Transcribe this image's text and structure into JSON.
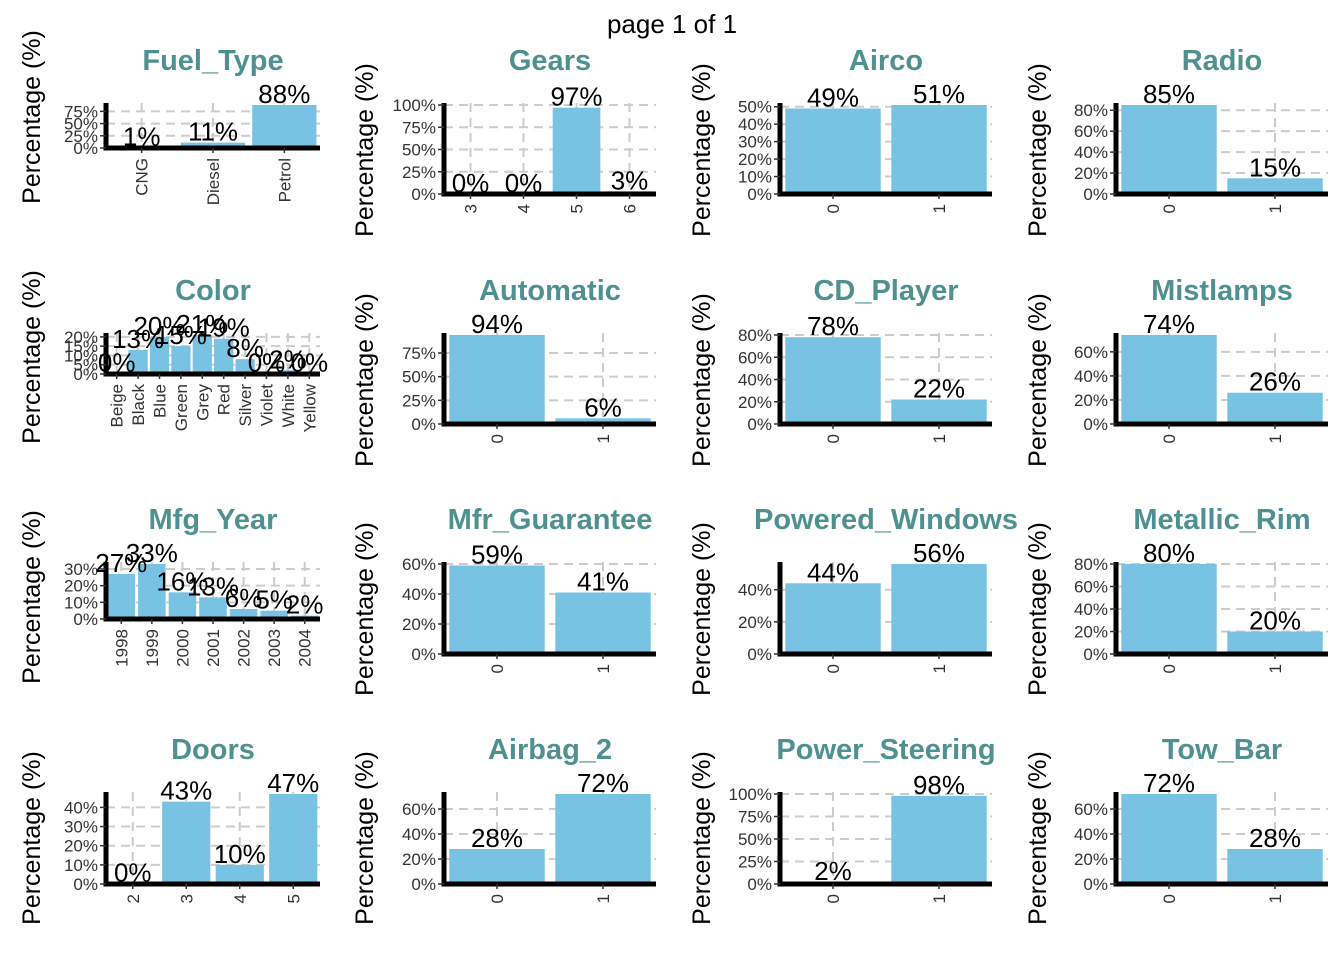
{
  "page_label": "page 1 of 1",
  "colors": {
    "bar": "#78c2e4",
    "title": "#4f9191",
    "grid": "#cccccc"
  },
  "chart_data": [
    {
      "type": "bar",
      "title": "Fuel_Type",
      "ylabel": "Percentage (%)",
      "categories": [
        "CNG",
        "Diesel",
        "Petrol"
      ],
      "values": [
        1,
        11,
        88
      ],
      "labels": [
        "1%",
        "11%",
        "88%"
      ],
      "yticks": [
        "0%",
        "25%",
        "50%",
        "75%"
      ],
      "ytick_values": [
        0,
        25,
        50,
        75
      ],
      "ylim": [
        0,
        88
      ]
    },
    {
      "type": "bar",
      "title": "Gears",
      "ylabel": "Percentage (%)",
      "categories": [
        "3",
        "4",
        "5",
        "6"
      ],
      "values": [
        0,
        0,
        97,
        3
      ],
      "labels": [
        "0%",
        "0%",
        "97%",
        "3%"
      ],
      "yticks": [
        "0%",
        "25%",
        "50%",
        "75%",
        "100%"
      ],
      "ytick_values": [
        0,
        25,
        50,
        75,
        100
      ],
      "ylim": [
        0,
        100
      ]
    },
    {
      "type": "bar",
      "title": "Airco",
      "ylabel": "Percentage (%)",
      "categories": [
        "0",
        "1"
      ],
      "values": [
        49,
        51
      ],
      "labels": [
        "49%",
        "51%"
      ],
      "yticks": [
        "0%",
        "10%",
        "20%",
        "30%",
        "40%",
        "50%"
      ],
      "ytick_values": [
        0,
        10,
        20,
        30,
        40,
        50
      ],
      "ylim": [
        0,
        51
      ]
    },
    {
      "type": "bar",
      "title": "Radio",
      "ylabel": "Percentage (%)",
      "categories": [
        "0",
        "1"
      ],
      "values": [
        85,
        15
      ],
      "labels": [
        "85%",
        "15%"
      ],
      "yticks": [
        "0%",
        "20%",
        "40%",
        "60%",
        "80%"
      ],
      "ytick_values": [
        0,
        20,
        40,
        60,
        80
      ],
      "ylim": [
        0,
        85
      ]
    },
    {
      "type": "bar",
      "title": "Color",
      "ylabel": "Percentage (%)",
      "categories": [
        "Beige",
        "Black",
        "Blue",
        "Green",
        "Grey",
        "Red",
        "Silver",
        "Violet",
        "White",
        "Yellow"
      ],
      "values": [
        0.2,
        13,
        20,
        15,
        21,
        19,
        8,
        0.2,
        2,
        0.2
      ],
      "labels": [
        "0%",
        "13%",
        "20%",
        "15%",
        "21%",
        "19%",
        "8%",
        "0%",
        "2%",
        "0%"
      ],
      "yticks": [
        "0%",
        "5%",
        "10%",
        "15%",
        "20%"
      ],
      "ytick_values": [
        0,
        5,
        10,
        15,
        20
      ],
      "ylim": [
        0,
        21
      ]
    },
    {
      "type": "bar",
      "title": "Automatic",
      "ylabel": "Percentage (%)",
      "categories": [
        "0",
        "1"
      ],
      "values": [
        94,
        6
      ],
      "labels": [
        "94%",
        "6%"
      ],
      "yticks": [
        "0%",
        "25%",
        "50%",
        "75%"
      ],
      "ytick_values": [
        0,
        25,
        50,
        75
      ],
      "ylim": [
        0,
        94
      ]
    },
    {
      "type": "bar",
      "title": "CD_Player",
      "ylabel": "Percentage (%)",
      "categories": [
        "0",
        "1"
      ],
      "values": [
        78,
        22
      ],
      "labels": [
        "78%",
        "22%"
      ],
      "yticks": [
        "0%",
        "20%",
        "40%",
        "60%",
        "80%"
      ],
      "ytick_values": [
        0,
        20,
        40,
        60,
        80
      ],
      "ylim": [
        0,
        80
      ]
    },
    {
      "type": "bar",
      "title": "Mistlamps",
      "ylabel": "Percentage (%)",
      "categories": [
        "0",
        "1"
      ],
      "values": [
        74,
        26
      ],
      "labels": [
        "74%",
        "26%"
      ],
      "yticks": [
        "0%",
        "20%",
        "40%",
        "60%"
      ],
      "ytick_values": [
        0,
        20,
        40,
        60
      ],
      "ylim": [
        0,
        74
      ]
    },
    {
      "type": "bar",
      "title": "Mfg_Year",
      "ylabel": "Percentage (%)",
      "categories": [
        "1998",
        "1999",
        "2000",
        "2001",
        "2002",
        "2003",
        "2004"
      ],
      "values": [
        27,
        33,
        16,
        13,
        6,
        5,
        2
      ],
      "labels": [
        "27%",
        "33%",
        "16%",
        "13%",
        "6%",
        "5%",
        "2%"
      ],
      "yticks": [
        "0%",
        "10%",
        "20%",
        "30%"
      ],
      "ytick_values": [
        0,
        10,
        20,
        30
      ],
      "ylim": [
        0,
        33
      ]
    },
    {
      "type": "bar",
      "title": "Mfr_Guarantee",
      "ylabel": "Percentage (%)",
      "categories": [
        "0",
        "1"
      ],
      "values": [
        59,
        41
      ],
      "labels": [
        "59%",
        "41%"
      ],
      "yticks": [
        "0%",
        "20%",
        "40%",
        "60%"
      ],
      "ytick_values": [
        0,
        20,
        40,
        60
      ],
      "ylim": [
        0,
        60
      ]
    },
    {
      "type": "bar",
      "title": "Powered_Windows",
      "ylabel": "Percentage (%)",
      "categories": [
        "0",
        "1"
      ],
      "values": [
        44,
        56
      ],
      "labels": [
        "44%",
        "56%"
      ],
      "yticks": [
        "0%",
        "20%",
        "40%"
      ],
      "ytick_values": [
        0,
        20,
        40
      ],
      "ylim": [
        0,
        56
      ]
    },
    {
      "type": "bar",
      "title": "Metallic_Rim",
      "ylabel": "Percentage (%)",
      "categories": [
        "0",
        "1"
      ],
      "values": [
        80,
        20
      ],
      "labels": [
        "80%",
        "20%"
      ],
      "yticks": [
        "0%",
        "20%",
        "40%",
        "60%",
        "80%"
      ],
      "ytick_values": [
        0,
        20,
        40,
        60,
        80
      ],
      "ylim": [
        0,
        80
      ]
    },
    {
      "type": "bar",
      "title": "Doors",
      "ylabel": "Percentage (%)",
      "categories": [
        "2",
        "3",
        "4",
        "5"
      ],
      "values": [
        0.2,
        43,
        10,
        47
      ],
      "labels": [
        "0%",
        "43%",
        "10%",
        "47%"
      ],
      "yticks": [
        "0%",
        "10%",
        "20%",
        "30%",
        "40%"
      ],
      "ytick_values": [
        0,
        10,
        20,
        30,
        40
      ],
      "ylim": [
        0,
        47
      ]
    },
    {
      "type": "bar",
      "title": "Airbag_2",
      "ylabel": "Percentage (%)",
      "categories": [
        "0",
        "1"
      ],
      "values": [
        28,
        72
      ],
      "labels": [
        "28%",
        "72%"
      ],
      "yticks": [
        "0%",
        "20%",
        "40%",
        "60%"
      ],
      "ytick_values": [
        0,
        20,
        40,
        60
      ],
      "ylim": [
        0,
        72
      ]
    },
    {
      "type": "bar",
      "title": "Power_Steering",
      "ylabel": "Percentage (%)",
      "categories": [
        "0",
        "1"
      ],
      "values": [
        2,
        98
      ],
      "labels": [
        "2%",
        "98%"
      ],
      "yticks": [
        "0%",
        "25%",
        "50%",
        "75%",
        "100%"
      ],
      "ytick_values": [
        0,
        25,
        50,
        75,
        100
      ],
      "ylim": [
        0,
        100
      ]
    },
    {
      "type": "bar",
      "title": "Tow_Bar",
      "ylabel": "Percentage (%)",
      "categories": [
        "0",
        "1"
      ],
      "values": [
        72,
        28
      ],
      "labels": [
        "72%",
        "28%"
      ],
      "yticks": [
        "0%",
        "20%",
        "40%",
        "60%"
      ],
      "ytick_values": [
        0,
        20,
        40,
        60
      ],
      "ylim": [
        0,
        72
      ]
    }
  ]
}
